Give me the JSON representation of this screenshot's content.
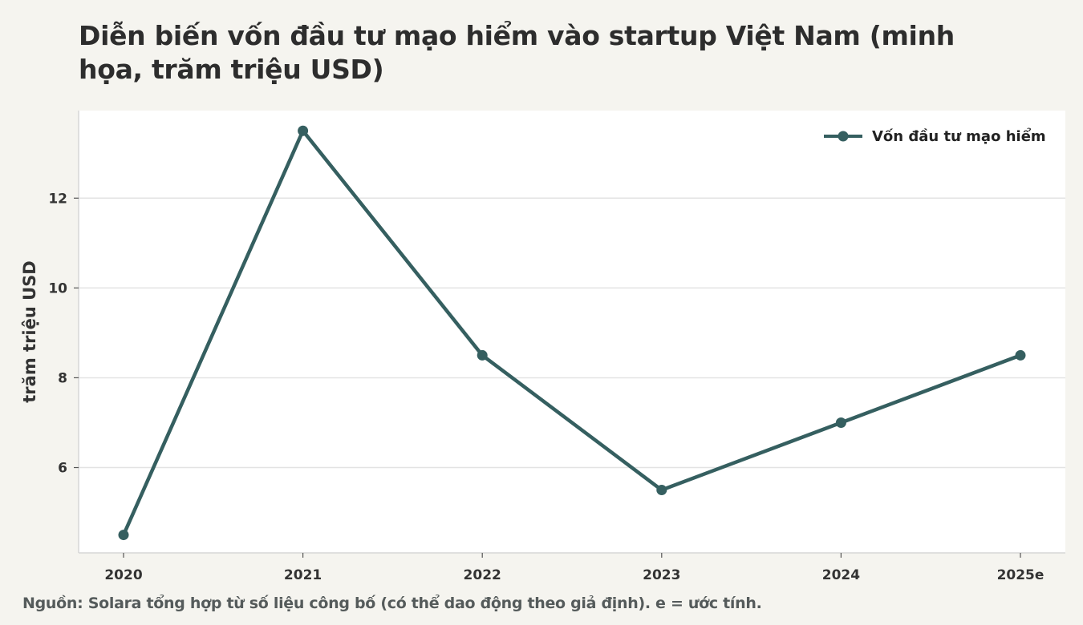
{
  "title": "Diễn biến vốn đầu tư mạo hiểm vào startup Việt Nam (minh họa, trăm triệu USD)",
  "source": "Nguồn: Solara tổng hợp từ số liệu công bố (có thể dao động theo giả định). e = ước tính.",
  "colors": {
    "series": "#355f60",
    "background": "#f5f4ef",
    "plot_background": "#ffffff",
    "grid": "#e3e3e3"
  },
  "chart_data": {
    "type": "line",
    "title": "Diễn biến vốn đầu tư mạo hiểm vào startup Việt Nam (minh họa, trăm triệu USD)",
    "xlabel": "",
    "ylabel": "trăm triệu USD",
    "categories": [
      "2020",
      "2021",
      "2022",
      "2023",
      "2024",
      "2025e"
    ],
    "series": [
      {
        "name": "Vốn đầu tư mạo hiểm",
        "values": [
          4.5,
          13.5,
          8.5,
          5.5,
          7.0,
          8.5
        ]
      }
    ],
    "ylim": [
      4.1,
      13.95
    ],
    "yticks": [
      6,
      8,
      10,
      12
    ],
    "grid": true,
    "legend": "top-right"
  }
}
